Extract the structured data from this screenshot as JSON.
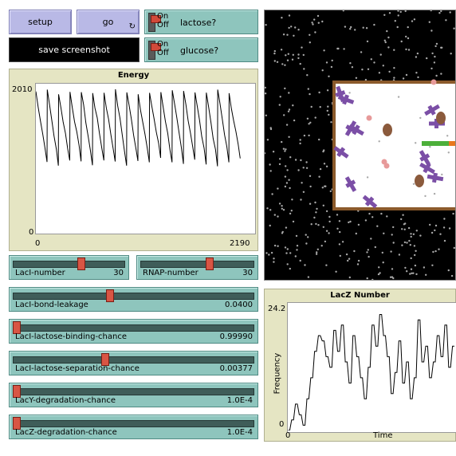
{
  "buttons": {
    "setup": "setup",
    "go": "go",
    "go_icon": "↻",
    "save_screenshot": "save screenshot"
  },
  "switches": [
    {
      "on": "On",
      "off": "Off",
      "label": "lactose?",
      "state": "off"
    },
    {
      "on": "On",
      "off": "Off",
      "label": "glucose?",
      "state": "off"
    }
  ],
  "energy_plot": {
    "title": "Energy",
    "x_min": "0",
    "x_max": "2190",
    "y_min": "0",
    "y_max": "2010"
  },
  "sliders": {
    "laci_number": {
      "name": "LacI-number",
      "value": "30",
      "fraction": 0.62
    },
    "rnap_number": {
      "name": "RNAP-number",
      "value": "30",
      "fraction": 0.62
    },
    "laci_bond_leakage": {
      "name": "LacI-bond-leakage",
      "value": "0.0400",
      "fraction": 0.4
    },
    "laci_lactose_binding": {
      "name": "LacI-lactose-binding-chance",
      "value": "0.99990",
      "fraction": 0.0
    },
    "laci_lactose_separation": {
      "name": "LacI-lactose-separation-chance",
      "value": "0.00377",
      "fraction": 0.38
    },
    "lacy_degradation": {
      "name": "LacY-degradation-chance",
      "value": "1.0E-4",
      "fraction": 0.0
    },
    "lacz_degradation": {
      "name": "LacZ-degradation-chance",
      "value": "1.0E-4",
      "fraction": 0.0
    }
  },
  "lacz_plot": {
    "title": "LacZ Number",
    "xlabel": "Time",
    "ylabel": "Frequency",
    "x_min": "0",
    "y_min": "0",
    "y_max": "24.2"
  },
  "chart_data": [
    {
      "type": "line",
      "title": "Energy",
      "xlim": [
        0,
        2190
      ],
      "ylim": [
        0,
        2010
      ],
      "pattern": "sawtooth",
      "cycles": 18,
      "peak": 1900,
      "trough": 950
    },
    {
      "type": "line",
      "title": "LacZ Number",
      "xlabel": "Time",
      "ylabel": "Frequency",
      "ylim": [
        0,
        24.2
      ],
      "y": [
        0,
        0,
        2,
        2,
        5,
        5,
        3,
        3,
        1,
        1,
        6,
        6,
        10,
        10,
        15,
        15,
        18,
        18,
        17,
        17,
        14,
        14,
        12,
        12,
        19,
        19,
        15,
        15,
        20,
        20,
        13,
        13,
        9,
        9,
        18,
        18,
        14,
        14,
        10,
        10,
        6,
        6,
        12,
        12,
        20,
        20,
        16,
        16,
        22,
        22,
        18,
        18,
        14,
        14,
        7,
        7,
        11,
        11,
        17,
        17,
        9,
        9,
        13,
        13,
        6,
        6,
        10,
        10,
        21,
        21,
        13,
        13,
        16,
        16,
        10,
        10,
        13,
        13,
        18,
        18,
        14,
        14,
        20,
        20,
        12,
        12,
        16,
        16
      ]
    }
  ],
  "view": {
    "background": "#000000",
    "cell_border": "#8b5a2b",
    "cell_fill": "#ffffff",
    "laci_color": "#7b4fa6",
    "rnap_color": "#8b5a3c",
    "lacz_color": "#e79a9a",
    "operon_green": "#4caf3a",
    "operon_orange": "#e8781e"
  }
}
